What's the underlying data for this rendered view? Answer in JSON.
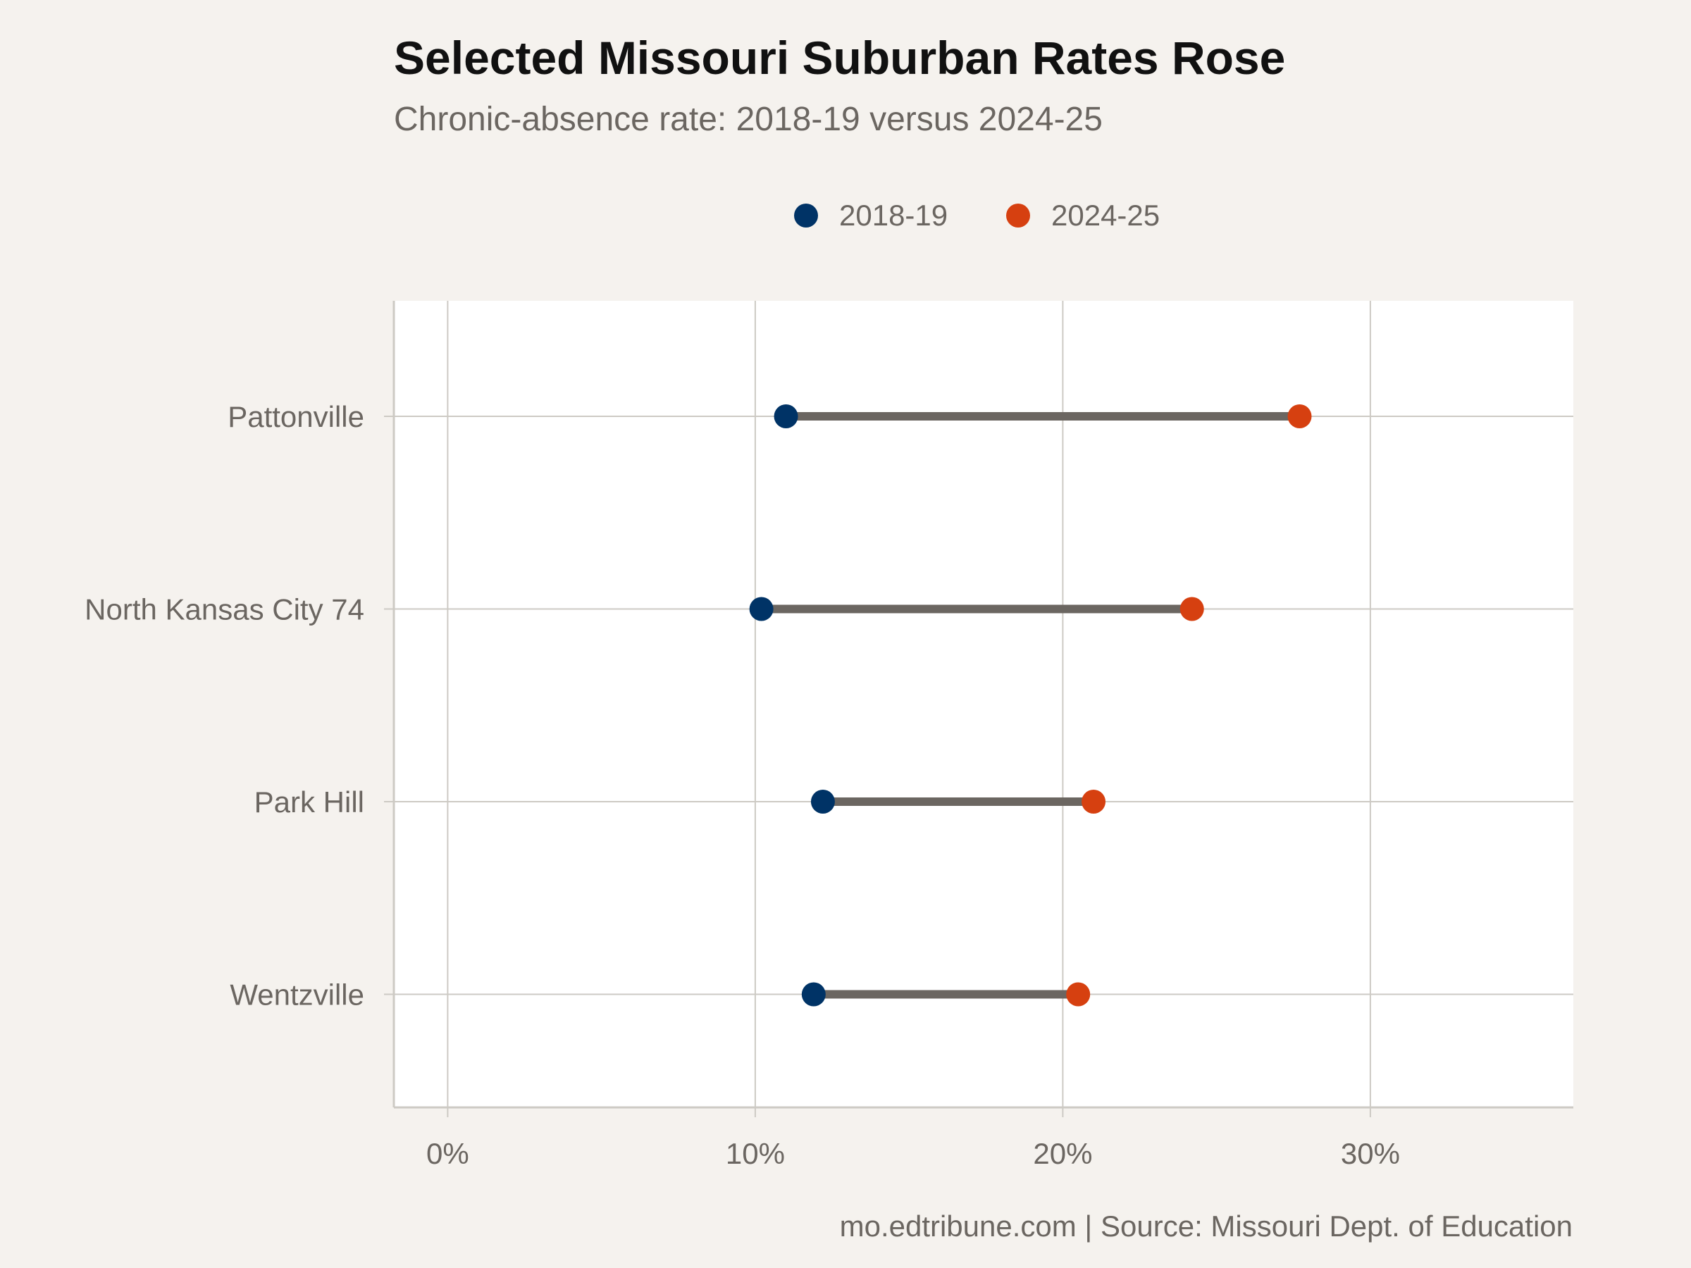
{
  "chart_data": {
    "type": "dumbbell",
    "title": "Selected Missouri Suburban Rates Rose",
    "subtitle": "Chronic-absence rate: 2018-19 versus 2024-25",
    "caption": "mo.edtribune.com | Source: Missouri Dept. of Education",
    "xlabel": "",
    "ylabel": "",
    "xlim": [
      -1.75,
      36.6
    ],
    "x_ticks": [
      0,
      10,
      20,
      30
    ],
    "x_tick_labels": [
      "0%",
      "10%",
      "20%",
      "30%"
    ],
    "x_units": "percent",
    "grid": true,
    "legend_position": "top",
    "categories": [
      "Pattonville",
      "North Kansas City 74",
      "Park Hill",
      "Wentzville"
    ],
    "series": [
      {
        "name": "2018-19",
        "color": "#003366",
        "values": [
          11.0,
          10.2,
          12.2,
          11.9
        ]
      },
      {
        "name": "2024-25",
        "color": "#d64010",
        "values": [
          27.7,
          24.2,
          21.0,
          20.5
        ]
      }
    ],
    "connector_color": "#6b6661",
    "panel_color": "#ffffff",
    "grid_color": "#cdcac4",
    "background_color": "#f5f2ee"
  }
}
